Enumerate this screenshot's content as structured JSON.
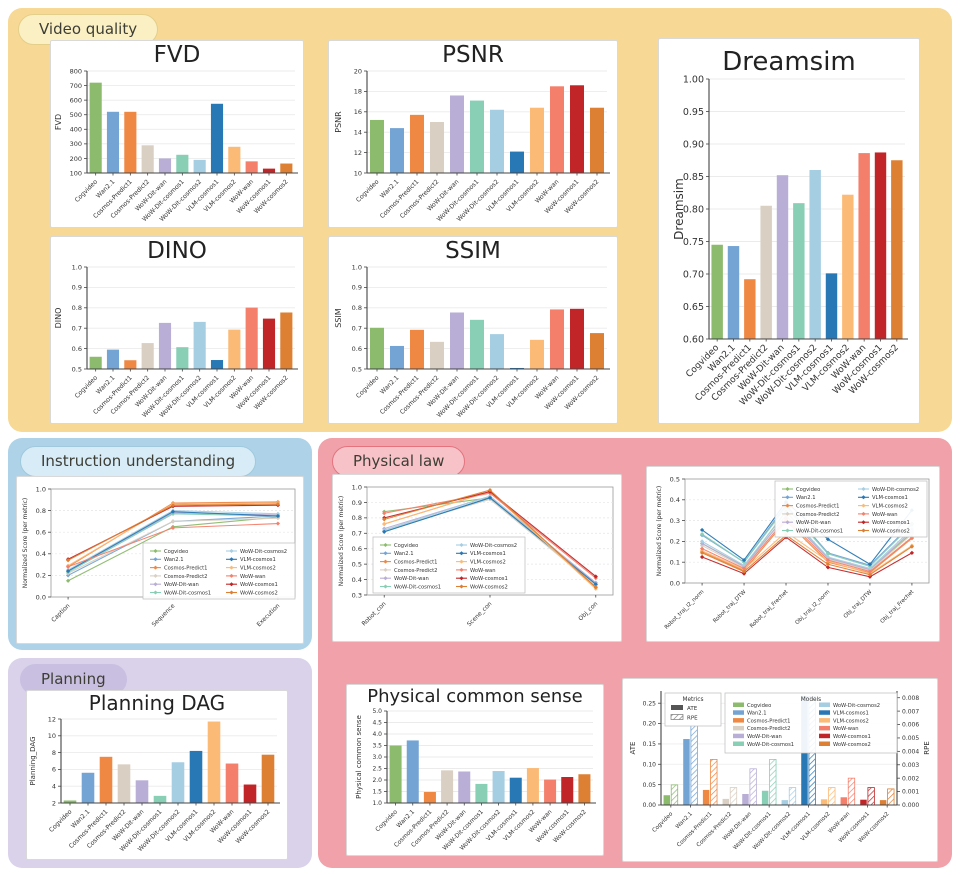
{
  "models": [
    {
      "name": "Cogvideo",
      "color": "#8cbb6e"
    },
    {
      "name": "Wan2.1",
      "color": "#74a4d4"
    },
    {
      "name": "Cosmos-Predict1",
      "color": "#ef8843"
    },
    {
      "name": "Cosmos-Predict2",
      "color": "#d9cfc2"
    },
    {
      "name": "WoW-Dit-wan",
      "color": "#b9aed6"
    },
    {
      "name": "WoW-Dit-cosmos1",
      "color": "#88cfb6"
    },
    {
      "name": "WoW-Dit-cosmos2",
      "color": "#a6cee3"
    },
    {
      "name": "VLM-cosmos1",
      "color": "#2878b5"
    },
    {
      "name": "VLM-cosmos2",
      "color": "#fbbb77"
    },
    {
      "name": "WoW-wan",
      "color": "#f4806c"
    },
    {
      "name": "WoW-cosmos1",
      "color": "#c22527"
    },
    {
      "name": "WoW-cosmos2",
      "color": "#dd8033"
    }
  ],
  "sections": {
    "video_quality": {
      "label": "Video quality",
      "bg": "#f7d894",
      "pill_bg": "#fbf0c4",
      "pill_border": "#e3cf8a"
    },
    "instruction": {
      "label": "Instruction understanding",
      "bg": "#aed3e8",
      "pill_bg": "#d8ecf7",
      "pill_border": "#a0c9dd"
    },
    "physical_law": {
      "label": "Physical law",
      "bg": "#f0a1aa",
      "pill_bg": "#f7c3c8",
      "pill_border": "#e4737e"
    },
    "planning": {
      "label": "Planning",
      "bg": "#d9d2ea",
      "pill_bg": "#c9bfe0",
      "pill_border": "#c9bfe0"
    }
  },
  "chart_data": [
    {
      "id": "fvd",
      "type": "bar",
      "title": "FVD",
      "ylabel": "FVD",
      "ylim": [
        100,
        800
      ],
      "yticks": [
        "100",
        "200",
        "300",
        "400",
        "500",
        "600",
        "700",
        "800"
      ],
      "categories": [
        "Cogvideo",
        "Wan2.1",
        "Cosmos-Predict1",
        "Cosmos-Predict2",
        "WoW-Dit-wan",
        "WoW-Dit-cosmos1",
        "WoW-Dit-cosmos2",
        "VLM-cosmos1",
        "VLM-cosmos2",
        "WoW-wan",
        "WoW-cosmos1",
        "WoW-cosmos2"
      ],
      "values": [
        720,
        520,
        520,
        290,
        200,
        225,
        190,
        575,
        280,
        180,
        130,
        165
      ]
    },
    {
      "id": "psnr",
      "type": "bar",
      "title": "PSNR",
      "ylabel": "PSNR",
      "ylim": [
        10,
        20
      ],
      "yticks": [
        "10",
        "12",
        "14",
        "16",
        "18",
        "20"
      ],
      "categories": [
        "Cogvideo",
        "Wan2.1",
        "Cosmos-Predict1",
        "Cosmos-Predict2",
        "WoW-Dit-wan",
        "WoW-Dit-cosmos1",
        "WoW-Dit-cosmos2",
        "VLM-cosmos1",
        "VLM-cosmos2",
        "WoW-wan",
        "WoW-cosmos1",
        "WoW-cosmos2"
      ],
      "values": [
        15.2,
        14.4,
        15.7,
        15.0,
        17.6,
        17.1,
        16.2,
        12.1,
        16.4,
        18.5,
        18.6,
        16.4
      ]
    },
    {
      "id": "dreamsim",
      "type": "bar",
      "title": "Dreamsim",
      "ylabel": "Dreamsim",
      "ylim": [
        0.6,
        1.0
      ],
      "yticks": [
        "0.60",
        "0.65",
        "0.70",
        "0.75",
        "0.80",
        "0.85",
        "0.90",
        "0.95",
        "1.00"
      ],
      "categories": [
        "Cogvideo",
        "Wan2.1",
        "Cosmos-Predict1",
        "Cosmos-Predict2",
        "WoW-Dit-wan",
        "WoW-Dit-cosmos1",
        "WoW-Dit-cosmos2",
        "VLM-cosmos1",
        "VLM-cosmos2",
        "WoW-wan",
        "WoW-cosmos1",
        "WoW-cosmos2"
      ],
      "values": [
        0.745,
        0.743,
        0.692,
        0.805,
        0.852,
        0.809,
        0.86,
        0.701,
        0.822,
        0.886,
        0.887,
        0.875
      ]
    },
    {
      "id": "dino",
      "type": "bar",
      "title": "DINO",
      "ylabel": "DINO",
      "ylim": [
        0.5,
        1.0
      ],
      "yticks": [
        "0.5",
        "0.6",
        "0.7",
        "0.8",
        "0.9",
        "1.0"
      ],
      "categories": [
        "Cogvideo",
        "Wan2.1",
        "Cosmos-Predict1",
        "Cosmos-Predict2",
        "WoW-Dit-wan",
        "WoW-Dit-cosmos1",
        "WoW-Dit-cosmos2",
        "VLM-cosmos1",
        "VLM-cosmos2",
        "WoW-wan",
        "WoW-cosmos1",
        "WoW-cosmos2"
      ],
      "values": [
        0.56,
        0.595,
        0.543,
        0.627,
        0.726,
        0.607,
        0.731,
        0.544,
        0.693,
        0.801,
        0.747,
        0.777
      ]
    },
    {
      "id": "ssim",
      "type": "bar",
      "title": "SSIM",
      "ylabel": "SSIM",
      "ylim": [
        0.5,
        1.0
      ],
      "yticks": [
        "0.5",
        "0.6",
        "0.7",
        "0.8",
        "0.9",
        "1.0"
      ],
      "categories": [
        "Cogvideo",
        "Wan2.1",
        "Cosmos-Predict1",
        "Cosmos-Predict2",
        "WoW-Dit-wan",
        "WoW-Dit-cosmos1",
        "WoW-Dit-cosmos2",
        "VLM-cosmos1",
        "VLM-cosmos2",
        "WoW-wan",
        "WoW-cosmos1",
        "WoW-cosmos2"
      ],
      "values": [
        0.702,
        0.613,
        0.692,
        0.633,
        0.777,
        0.741,
        0.671,
        0.505,
        0.643,
        0.792,
        0.795,
        0.676
      ]
    },
    {
      "id": "instruction",
      "type": "line",
      "title": "",
      "ylabel": "Normalized Score (per metric)",
      "ylim": [
        0.0,
        1.0
      ],
      "yticks": [
        "0.0",
        "0.2",
        "0.4",
        "0.6",
        "0.8",
        "1.0"
      ],
      "x_categories": [
        "Caption",
        "Sequence",
        "Execution"
      ],
      "legend_position": "center-right",
      "series": [
        {
          "name": "Cogvideo",
          "values": [
            0.15,
            0.65,
            0.74
          ]
        },
        {
          "name": "Wan2.1",
          "values": [
            0.2,
            0.7,
            0.75
          ]
        },
        {
          "name": "Cosmos-Predict1",
          "values": [
            0.28,
            0.87,
            0.88
          ]
        },
        {
          "name": "Cosmos-Predict2",
          "values": [
            0.22,
            0.7,
            0.73
          ]
        },
        {
          "name": "WoW-Dit-wan",
          "values": [
            0.24,
            0.78,
            0.76
          ]
        },
        {
          "name": "WoW-Dit-cosmos1",
          "values": [
            0.23,
            0.77,
            0.75
          ]
        },
        {
          "name": "WoW-Dit-cosmos2",
          "values": [
            0.25,
            0.8,
            0.77
          ]
        },
        {
          "name": "VLM-cosmos1",
          "values": [
            0.24,
            0.79,
            0.75
          ]
        },
        {
          "name": "VLM-cosmos2",
          "values": [
            0.29,
            0.86,
            0.87
          ]
        },
        {
          "name": "WoW-wan",
          "values": [
            0.28,
            0.64,
            0.68
          ]
        },
        {
          "name": "WoW-cosmos1",
          "values": [
            0.35,
            0.84,
            0.85
          ]
        },
        {
          "name": "WoW-cosmos2",
          "values": [
            0.34,
            0.85,
            0.86
          ]
        }
      ]
    },
    {
      "id": "physical_law",
      "type": "line",
      "title": "",
      "ylabel": "Normalized Score (per metric)",
      "ylim": [
        0.3,
        1.0
      ],
      "yticks": [
        "0.3",
        "0.4",
        "0.5",
        "0.6",
        "0.7",
        "0.8",
        "0.9",
        "1.0"
      ],
      "x_categories": [
        "Robot_con",
        "Scene_con",
        "Obj_con"
      ],
      "legend_position": "bottom-left",
      "series": [
        {
          "name": "Cogvideo",
          "values": [
            0.84,
            0.93,
            0.37
          ]
        },
        {
          "name": "Wan2.1",
          "values": [
            0.71,
            0.93,
            0.37
          ]
        },
        {
          "name": "Cosmos-Predict1",
          "values": [
            0.76,
            0.97,
            0.35
          ]
        },
        {
          "name": "Cosmos-Predict2",
          "values": [
            0.72,
            0.92,
            0.36
          ]
        },
        {
          "name": "WoW-Dit-wan",
          "values": [
            0.73,
            0.94,
            0.38
          ]
        },
        {
          "name": "WoW-Dit-cosmos1",
          "values": [
            0.71,
            0.93,
            0.37
          ]
        },
        {
          "name": "WoW-Dit-cosmos2",
          "values": [
            0.72,
            0.94,
            0.37
          ]
        },
        {
          "name": "VLM-cosmos1",
          "values": [
            0.71,
            0.93,
            0.37
          ]
        },
        {
          "name": "VLM-cosmos2",
          "values": [
            0.76,
            0.97,
            0.34
          ]
        },
        {
          "name": "WoW-wan",
          "values": [
            0.83,
            0.96,
            0.41
          ]
        },
        {
          "name": "WoW-cosmos1",
          "values": [
            0.8,
            0.97,
            0.42
          ]
        },
        {
          "name": "WoW-cosmos2",
          "values": [
            0.79,
            0.98,
            0.35
          ]
        }
      ]
    },
    {
      "id": "trajectory",
      "type": "line",
      "title": "",
      "ylabel": "Normalized Score (per metric)",
      "ylim": [
        0.0,
        0.5
      ],
      "yticks": [
        "0.0",
        "0.1",
        "0.2",
        "0.3",
        "0.4",
        "0.5"
      ],
      "x_categories": [
        "Robot_traj_l2_norm",
        "Robot_traj_DTW",
        "Robot_traj_Frechet",
        "Obj_traj_l2_norm",
        "Obj_traj_DTW",
        "Obj_traj_Frechet"
      ],
      "legend_position": "top-right",
      "series": [
        {
          "name": "Cogvideo",
          "values": [
            0.19,
            0.08,
            0.345,
            0.12,
            0.065,
            0.24
          ]
        },
        {
          "name": "Wan2.1",
          "values": [
            0.23,
            0.1,
            0.375,
            0.145,
            0.085,
            0.285
          ]
        },
        {
          "name": "Cosmos-Predict1",
          "values": [
            0.15,
            0.06,
            0.3,
            0.1,
            0.05,
            0.215
          ]
        },
        {
          "name": "Cosmos-Predict2",
          "values": [
            0.18,
            0.075,
            0.325,
            0.115,
            0.06,
            0.235
          ]
        },
        {
          "name": "WoW-Dit-wan",
          "values": [
            0.19,
            0.08,
            0.325,
            0.12,
            0.065,
            0.25
          ]
        },
        {
          "name": "WoW-Dit-cosmos1",
          "values": [
            0.235,
            0.1,
            0.365,
            0.14,
            0.08,
            0.28
          ]
        },
        {
          "name": "WoW-Dit-cosmos2",
          "values": [
            0.2,
            0.085,
            0.34,
            0.125,
            0.07,
            0.26
          ]
        },
        {
          "name": "VLM-cosmos1",
          "values": [
            0.255,
            0.11,
            0.39,
            0.21,
            0.09,
            0.35
          ]
        },
        {
          "name": "VLM-cosmos2",
          "values": [
            0.155,
            0.065,
            0.245,
            0.105,
            0.045,
            0.18
          ]
        },
        {
          "name": "WoW-wan",
          "values": [
            0.165,
            0.07,
            0.31,
            0.11,
            0.055,
            0.22
          ]
        },
        {
          "name": "WoW-cosmos1",
          "values": [
            0.125,
            0.045,
            0.22,
            0.075,
            0.03,
            0.145
          ]
        },
        {
          "name": "WoW-cosmos2",
          "values": [
            0.145,
            0.055,
            0.23,
            0.09,
            0.04,
            0.175
          ]
        }
      ]
    },
    {
      "id": "planning_dag",
      "type": "bar",
      "title": "Planning DAG",
      "ylabel": "Planning_DAG",
      "ylim": [
        2,
        12
      ],
      "yticks": [
        "2",
        "4",
        "6",
        "8",
        "10",
        "12"
      ],
      "categories": [
        "Cogvideo",
        "Wan2.1",
        "Cosmos-Predict1",
        "Cosmos-Predict2",
        "WoW-Dit-wan",
        "WoW-Dit-cosmos1",
        "WoW-Dit-cosmos2",
        "VLM-cosmos1",
        "VLM-cosmos2",
        "WoW-wan",
        "WoW-cosmos1",
        "WoW-cosmos2"
      ],
      "values": [
        2.3,
        5.6,
        7.5,
        6.6,
        4.7,
        2.85,
        6.85,
        8.2,
        11.7,
        6.7,
        4.2,
        7.75
      ]
    },
    {
      "id": "physical_common_sense",
      "type": "bar",
      "title": "Physical common sense",
      "ylabel": "Physical common sense",
      "ylim": [
        1.0,
        5.0
      ],
      "yticks": [
        "1.0",
        "1.5",
        "2.0",
        "2.5",
        "3.0",
        "3.5",
        "4.0",
        "4.5",
        "5.0"
      ],
      "categories": [
        "Cogvideo",
        "Wan2.1",
        "Cosmos-Predict1",
        "Cosmos-Predict2",
        "WoW-Dit-wan",
        "WoW-Dit-cosmos1",
        "WoW-Dit-cosmos2",
        "VLM-cosmos1",
        "VLM-cosmos2",
        "WoW-wan",
        "WoW-cosmos1",
        "WoW-cosmos2"
      ],
      "values": [
        3.5,
        3.72,
        1.48,
        2.42,
        2.37,
        1.83,
        2.39,
        2.1,
        2.52,
        2.02,
        2.13,
        2.25
      ]
    },
    {
      "id": "ate_rpe",
      "type": "grouped-dual-bar",
      "title": "",
      "left_axis": {
        "label": "ATE",
        "lim": [
          0,
          0.28
        ],
        "ticks": [
          "0.00",
          "0.05",
          "0.10",
          "0.15",
          "0.20",
          "0.25"
        ]
      },
      "right_axis": {
        "label": "RPE",
        "lim": [
          0,
          0.0085
        ],
        "ticks": [
          "0.000",
          "0.001",
          "0.002",
          "0.003",
          "0.004",
          "0.005",
          "0.006",
          "0.007",
          "0.008"
        ]
      },
      "categories": [
        "Cogvideo",
        "Wan2.1",
        "Cosmos-Predict1",
        "Cosmos-Predict2",
        "WoW-Dit-wan",
        "WoW-Dit-cosmos1",
        "WoW-Dit-cosmos2",
        "VLM-cosmos1",
        "VLM-cosmos2",
        "WoW-wan",
        "WoW-cosmos1",
        "WoW-cosmos2"
      ],
      "series": [
        {
          "name": "ATE",
          "axis": "left",
          "values": [
            0.024,
            0.162,
            0.037,
            0.015,
            0.027,
            0.035,
            0.012,
            0.268,
            0.014,
            0.019,
            0.013,
            0.012
          ]
        },
        {
          "name": "RPE",
          "axis": "right",
          "values": [
            0.0015,
            0.0063,
            0.0034,
            0.0013,
            0.0027,
            0.0034,
            0.0013,
            0.0081,
            0.0013,
            0.002,
            0.0013,
            0.0012
          ]
        }
      ],
      "legends": {
        "metrics_title": "Metrics",
        "metric_labels": [
          "ATE",
          "RPE"
        ],
        "models_title": "Models"
      }
    }
  ]
}
